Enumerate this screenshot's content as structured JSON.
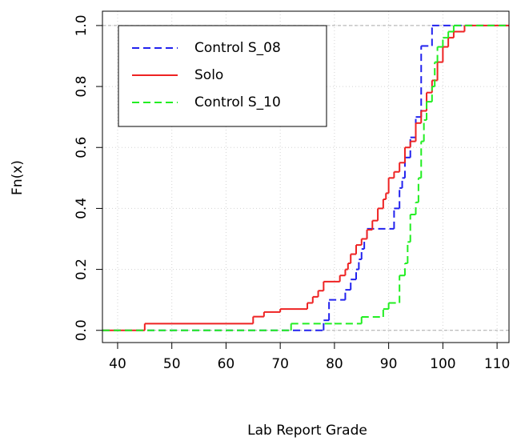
{
  "chart_data": {
    "type": "step",
    "x_label": "Lab Report Grade",
    "y_label": "Fn(x)",
    "xlim": [
      37.2,
      112.2
    ],
    "ylim": [
      -0.04,
      1.047
    ],
    "xticks": [
      40,
      50,
      60,
      70,
      80,
      90,
      100,
      110
    ],
    "yticks": [
      {
        "value": 0,
        "label": "0.0"
      },
      0.2,
      0.4,
      0.6,
      0.8,
      {
        "value": 1,
        "label": "1.0"
      }
    ],
    "grid": true,
    "reference_lines": [
      0,
      1
    ],
    "legend": "top-left",
    "series": [
      {
        "name": "Control S_08",
        "color": "#2222ee",
        "dashed": true,
        "x": [
          78,
          79,
          82,
          83,
          84,
          84.5,
          85,
          85.5,
          86,
          91,
          92,
          92.5,
          93,
          94,
          95,
          96,
          98
        ],
        "values": [
          0.033,
          0.1,
          0.133,
          0.167,
          0.2,
          0.233,
          0.267,
          0.3,
          0.333,
          0.4,
          0.467,
          0.5,
          0.567,
          0.633,
          0.7,
          0.933,
          1.0
        ]
      },
      {
        "name": "Solo",
        "color": "#ee2222",
        "dashed": false,
        "x": [
          45,
          65,
          67,
          70,
          75,
          76,
          77,
          78,
          81,
          82,
          82.5,
          83,
          84,
          85,
          86,
          87,
          88,
          89,
          89.5,
          90,
          91,
          92,
          93,
          94,
          95,
          96,
          97,
          98,
          99,
          100,
          101,
          102,
          104
        ],
        "values": [
          0.022,
          0.045,
          0.06,
          0.07,
          0.09,
          0.11,
          0.13,
          0.16,
          0.18,
          0.2,
          0.22,
          0.25,
          0.28,
          0.3,
          0.33,
          0.36,
          0.4,
          0.43,
          0.45,
          0.5,
          0.52,
          0.55,
          0.6,
          0.62,
          0.68,
          0.72,
          0.78,
          0.82,
          0.88,
          0.93,
          0.96,
          0.98,
          1.0
        ]
      },
      {
        "name": "Control S_10",
        "color": "#22ee22",
        "dashed": true,
        "x": [
          72,
          80,
          85,
          89,
          90,
          92,
          93,
          93.5,
          94,
          95,
          95.5,
          96,
          96.5,
          97,
          98,
          98.5,
          99,
          100,
          101,
          102
        ],
        "values": [
          0.022,
          0.022,
          0.044,
          0.07,
          0.09,
          0.18,
          0.22,
          0.29,
          0.38,
          0.42,
          0.5,
          0.62,
          0.69,
          0.75,
          0.8,
          0.88,
          0.93,
          0.96,
          0.98,
          1.0
        ]
      }
    ]
  }
}
